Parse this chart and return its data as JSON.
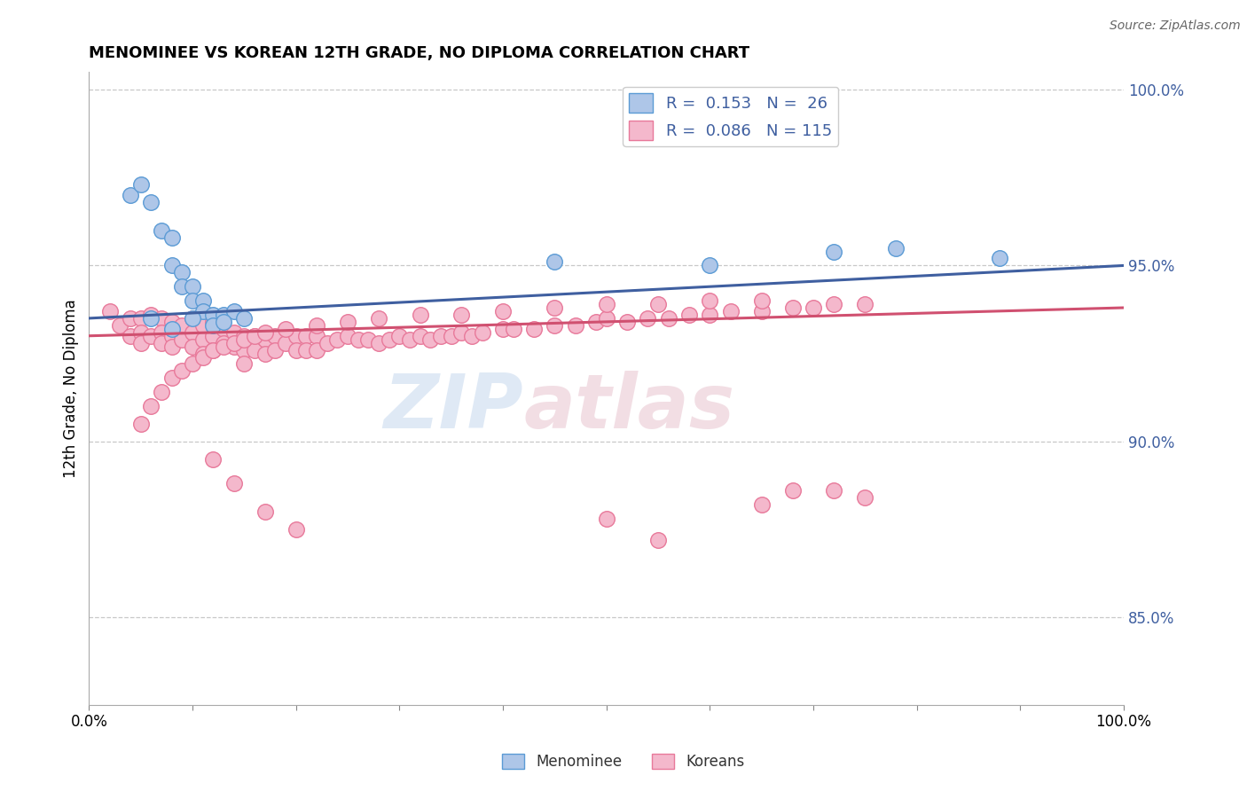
{
  "title": "MENOMINEE VS KOREAN 12TH GRADE, NO DIPLOMA CORRELATION CHART",
  "source_text": "Source: ZipAtlas.com",
  "ylabel": "12th Grade, No Diploma",
  "xlim": [
    0.0,
    1.0
  ],
  "ylim": [
    0.825,
    1.005
  ],
  "right_yticks": [
    0.85,
    0.9,
    0.95,
    1.0
  ],
  "right_yticklabels": [
    "85.0%",
    "90.0%",
    "95.0%",
    "100.0%"
  ],
  "xtick_positions": [
    0.0,
    0.1,
    0.2,
    0.3,
    0.4,
    0.5,
    0.6,
    0.7,
    0.8,
    0.9,
    1.0
  ],
  "xticklabels_ends": [
    "0.0%",
    "100.0%"
  ],
  "menominee_color": "#aec6e8",
  "menominee_edge": "#5b9bd5",
  "korean_color": "#f4b8cc",
  "korean_edge": "#e8799a",
  "trend_blue": "#3f5fa0",
  "trend_pink": "#d05070",
  "background_color": "#ffffff",
  "grid_color": "#c8c8c8",
  "men_trend_start": 0.935,
  "men_trend_end": 0.95,
  "kor_trend_start": 0.93,
  "kor_trend_end": 0.938,
  "men_x": [
    0.04,
    0.05,
    0.06,
    0.07,
    0.08,
    0.08,
    0.09,
    0.09,
    0.1,
    0.1,
    0.11,
    0.11,
    0.12,
    0.12,
    0.13,
    0.14,
    0.15,
    0.45,
    0.6,
    0.72,
    0.78,
    0.88,
    0.06,
    0.08,
    0.1,
    0.13
  ],
  "men_y": [
    0.97,
    0.973,
    0.968,
    0.96,
    0.958,
    0.95,
    0.948,
    0.944,
    0.944,
    0.94,
    0.94,
    0.937,
    0.936,
    0.933,
    0.936,
    0.937,
    0.935,
    0.951,
    0.95,
    0.954,
    0.955,
    0.952,
    0.935,
    0.932,
    0.935,
    0.934
  ],
  "kor_x": [
    0.02,
    0.03,
    0.04,
    0.04,
    0.05,
    0.05,
    0.05,
    0.06,
    0.06,
    0.07,
    0.07,
    0.07,
    0.08,
    0.08,
    0.08,
    0.09,
    0.09,
    0.1,
    0.1,
    0.1,
    0.11,
    0.11,
    0.11,
    0.12,
    0.12,
    0.12,
    0.13,
    0.13,
    0.14,
    0.14,
    0.15,
    0.15,
    0.15,
    0.16,
    0.16,
    0.17,
    0.17,
    0.18,
    0.18,
    0.19,
    0.2,
    0.2,
    0.21,
    0.21,
    0.22,
    0.22,
    0.23,
    0.24,
    0.25,
    0.26,
    0.27,
    0.28,
    0.29,
    0.3,
    0.31,
    0.32,
    0.33,
    0.34,
    0.35,
    0.36,
    0.37,
    0.38,
    0.4,
    0.41,
    0.43,
    0.45,
    0.47,
    0.49,
    0.5,
    0.52,
    0.54,
    0.56,
    0.58,
    0.6,
    0.62,
    0.65,
    0.68,
    0.7,
    0.72,
    0.75,
    0.12,
    0.14,
    0.17,
    0.2,
    0.5,
    0.55,
    0.65,
    0.68,
    0.72,
    0.75,
    0.05,
    0.06,
    0.07,
    0.08,
    0.09,
    0.1,
    0.11,
    0.12,
    0.13,
    0.14,
    0.15,
    0.16,
    0.17,
    0.19,
    0.22,
    0.25,
    0.28,
    0.32,
    0.36,
    0.4,
    0.45,
    0.5,
    0.55,
    0.6,
    0.65
  ],
  "kor_y": [
    0.937,
    0.933,
    0.935,
    0.93,
    0.935,
    0.931,
    0.928,
    0.936,
    0.93,
    0.935,
    0.931,
    0.928,
    0.934,
    0.93,
    0.927,
    0.933,
    0.929,
    0.935,
    0.931,
    0.927,
    0.933,
    0.929,
    0.925,
    0.934,
    0.93,
    0.926,
    0.932,
    0.928,
    0.931,
    0.927,
    0.93,
    0.926,
    0.922,
    0.93,
    0.926,
    0.929,
    0.925,
    0.93,
    0.926,
    0.928,
    0.93,
    0.926,
    0.93,
    0.926,
    0.93,
    0.926,
    0.928,
    0.929,
    0.93,
    0.929,
    0.929,
    0.928,
    0.929,
    0.93,
    0.929,
    0.93,
    0.929,
    0.93,
    0.93,
    0.931,
    0.93,
    0.931,
    0.932,
    0.932,
    0.932,
    0.933,
    0.933,
    0.934,
    0.935,
    0.934,
    0.935,
    0.935,
    0.936,
    0.936,
    0.937,
    0.937,
    0.938,
    0.938,
    0.939,
    0.939,
    0.895,
    0.888,
    0.88,
    0.875,
    0.878,
    0.872,
    0.882,
    0.886,
    0.886,
    0.884,
    0.905,
    0.91,
    0.914,
    0.918,
    0.92,
    0.922,
    0.924,
    0.926,
    0.927,
    0.928,
    0.929,
    0.93,
    0.931,
    0.932,
    0.933,
    0.934,
    0.935,
    0.936,
    0.936,
    0.937,
    0.938,
    0.939,
    0.939,
    0.94,
    0.94
  ]
}
